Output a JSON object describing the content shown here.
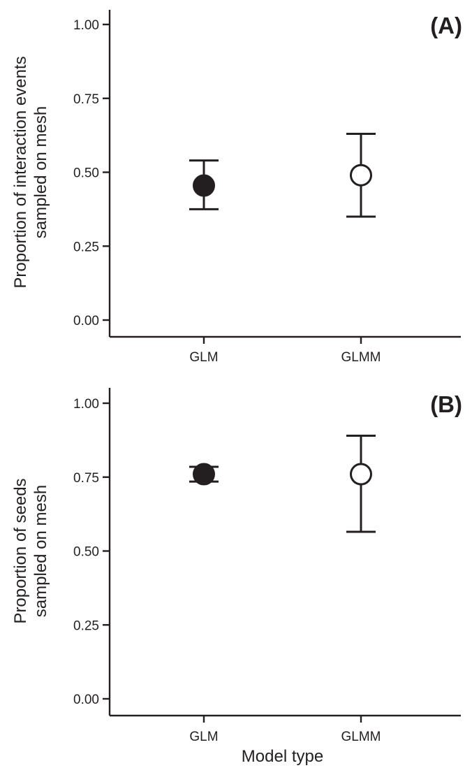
{
  "chart_data": [
    {
      "type": "scatter",
      "panel_label": "(A)",
      "title": "",
      "categories": [
        "GLM",
        "GLMM"
      ],
      "series": [
        {
          "category": "GLM",
          "value": 0.455,
          "lower": 0.375,
          "upper": 0.54,
          "marker": "filled"
        },
        {
          "category": "GLMM",
          "value": 0.49,
          "lower": 0.35,
          "upper": 0.63,
          "marker": "open"
        }
      ],
      "ylabel_lines": [
        "Proportion of interaction events",
        "sampled on mesh"
      ],
      "xlabel": "",
      "yticks": [
        "0.00",
        "0.25",
        "0.50",
        "0.75",
        "1.00"
      ],
      "ylim": [
        0,
        1
      ],
      "grid": false
    },
    {
      "type": "scatter",
      "panel_label": "(B)",
      "title": "",
      "categories": [
        "GLM",
        "GLMM"
      ],
      "series": [
        {
          "category": "GLM",
          "value": 0.76,
          "lower": 0.735,
          "upper": 0.785,
          "marker": "filled"
        },
        {
          "category": "GLMM",
          "value": 0.76,
          "lower": 0.565,
          "upper": 0.89,
          "marker": "open"
        }
      ],
      "ylabel_lines": [
        "Proportion of seeds",
        "sampled on mesh"
      ],
      "xlabel": "Model type",
      "yticks": [
        "0.00",
        "0.25",
        "0.50",
        "0.75",
        "1.00"
      ],
      "ylim": [
        0,
        1
      ],
      "grid": false
    }
  ],
  "colors": {
    "ink": "#231f20",
    "background": "#ffffff"
  }
}
